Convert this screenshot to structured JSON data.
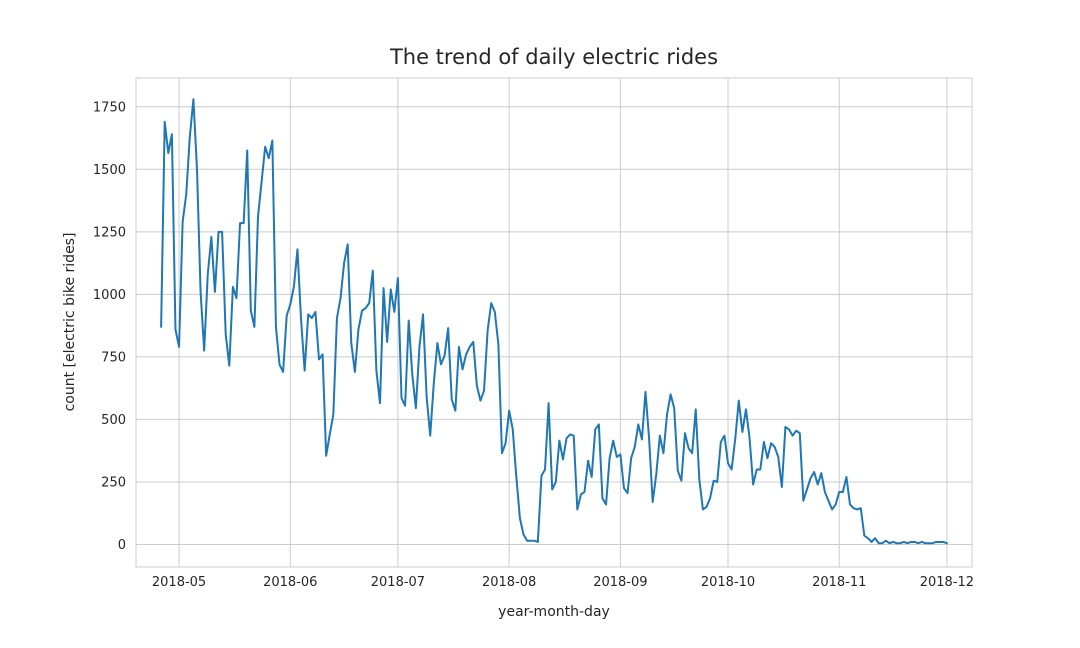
{
  "chart_data": {
    "type": "line",
    "title": "The trend of daily electric rides",
    "xlabel": "year-month-day",
    "ylabel": "count [electric bike rides]",
    "x_start": "2018-04-26",
    "xlim": [
      "2018-04-19",
      "2018-12-08"
    ],
    "ylim": [
      -90,
      1865
    ],
    "xticks": [
      "2018-05-01",
      "2018-06-01",
      "2018-07-01",
      "2018-08-01",
      "2018-09-01",
      "2018-10-01",
      "2018-11-01",
      "2018-12-01"
    ],
    "xtick_labels": [
      "2018-05",
      "2018-06",
      "2018-07",
      "2018-08",
      "2018-09",
      "2018-10",
      "2018-11",
      "2018-12"
    ],
    "yticks": [
      0,
      250,
      500,
      750,
      1000,
      1250,
      1500,
      1750
    ],
    "ytick_labels": [
      "0",
      "250",
      "500",
      "750",
      "1000",
      "1250",
      "1500",
      "1750"
    ],
    "grid": true,
    "line_color": "#1f77b4",
    "series": [
      {
        "values": [
          870,
          1690,
          1565,
          1640,
          860,
          790,
          1290,
          1400,
          1630,
          1780,
          1500,
          1010,
          775,
          1080,
          1230,
          1010,
          1250,
          1250,
          840,
          715,
          1030,
          985,
          1285,
          1285,
          1575,
          935,
          870,
          1310,
          1450,
          1590,
          1545,
          1615,
          870,
          720,
          690,
          915,
          960,
          1030,
          1180,
          900,
          695,
          920,
          905,
          930,
          740,
          760,
          355,
          440,
          520,
          905,
          985,
          1125,
          1200,
          805,
          690,
          860,
          935,
          945,
          965,
          1095,
          695,
          565,
          1025,
          810,
          1020,
          930,
          1065,
          585,
          555,
          895,
          680,
          545,
          790,
          920,
          590,
          435,
          645,
          805,
          720,
          755,
          865,
          580,
          535,
          790,
          700,
          760,
          790,
          810,
          635,
          575,
          615,
          855,
          965,
          930,
          800,
          365,
          405,
          535,
          460,
          270,
          105,
          40,
          15,
          15,
          15,
          10,
          275,
          300,
          565,
          220,
          250,
          415,
          340,
          425,
          440,
          435,
          140,
          200,
          210,
          335,
          270,
          460,
          480,
          185,
          160,
          345,
          415,
          350,
          360,
          225,
          205,
          345,
          390,
          480,
          420,
          610,
          425,
          170,
          280,
          435,
          365,
          520,
          600,
          545,
          295,
          255,
          445,
          385,
          365,
          540,
          260,
          140,
          150,
          185,
          255,
          250,
          410,
          435,
          325,
          300,
          420,
          575,
          450,
          540,
          425,
          240,
          300,
          300,
          410,
          345,
          405,
          390,
          350,
          230,
          470,
          460,
          435,
          455,
          445,
          175,
          220,
          265,
          290,
          240,
          285,
          210,
          175,
          140,
          160,
          210,
          210,
          270,
          160,
          145,
          140,
          145,
          35,
          25,
          10,
          25,
          5,
          5,
          15,
          5,
          10,
          5,
          5,
          10,
          5,
          10,
          10,
          5,
          10,
          5,
          5,
          5,
          10,
          10,
          10,
          5
        ]
      }
    ]
  }
}
